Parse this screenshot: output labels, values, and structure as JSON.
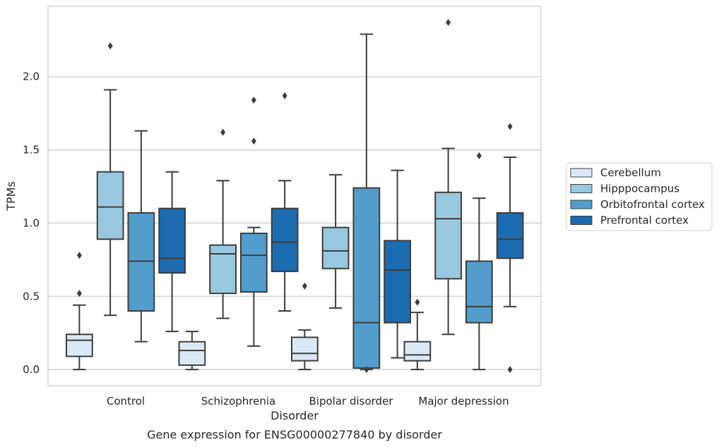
{
  "chart_data": {
    "type": "box",
    "xlabel": "Disorder",
    "ylabel": "TPMs",
    "caption": "Gene expression for ENSG00000277840 by disorder",
    "ylim": [
      -0.11,
      2.48
    ],
    "yticks": [
      0.0,
      0.5,
      1.0,
      1.5,
      2.0
    ],
    "ytick_labels": [
      "0.0",
      "0.5",
      "1.0",
      "1.5",
      "2.0"
    ],
    "grid": "horizontal",
    "legend_position": "right",
    "categories": [
      "Control",
      "Schizophrenia",
      "Bipolar disorder",
      "Major depression"
    ],
    "series": [
      {
        "name": "Cerebellum",
        "color": "#dbe9f6",
        "boxes": [
          {
            "whisker_low": 0.0,
            "q1": 0.09,
            "median": 0.2,
            "q3": 0.24,
            "whisker_high": 0.44,
            "outliers": [
              0.52,
              0.78
            ]
          },
          {
            "whisker_low": 0.0,
            "q1": 0.03,
            "median": 0.13,
            "q3": 0.19,
            "whisker_high": 0.26,
            "outliers": []
          },
          {
            "whisker_low": 0.0,
            "q1": 0.06,
            "median": 0.11,
            "q3": 0.22,
            "whisker_high": 0.27,
            "outliers": [
              0.57
            ]
          },
          {
            "whisker_low": 0.0,
            "q1": 0.06,
            "median": 0.1,
            "q3": 0.19,
            "whisker_high": 0.39,
            "outliers": [
              0.46
            ]
          }
        ]
      },
      {
        "name": "Hipppocampus",
        "color": "#9ac8e0",
        "boxes": [
          {
            "whisker_low": 0.37,
            "q1": 0.89,
            "median": 1.11,
            "q3": 1.35,
            "whisker_high": 1.91,
            "outliers": [
              2.21
            ]
          },
          {
            "whisker_low": 0.35,
            "q1": 0.52,
            "median": 0.79,
            "q3": 0.85,
            "whisker_high": 1.29,
            "outliers": [
              1.62
            ]
          },
          {
            "whisker_low": 0.42,
            "q1": 0.69,
            "median": 0.81,
            "q3": 0.97,
            "whisker_high": 1.33,
            "outliers": []
          },
          {
            "whisker_low": 0.24,
            "q1": 0.62,
            "median": 1.03,
            "q3": 1.21,
            "whisker_high": 1.51,
            "outliers": [
              2.37
            ]
          }
        ]
      },
      {
        "name": "Orbitofrontal cortex",
        "color": "#529dcc",
        "boxes": [
          {
            "whisker_low": 0.19,
            "q1": 0.4,
            "median": 0.74,
            "q3": 1.07,
            "whisker_high": 1.63,
            "outliers": []
          },
          {
            "whisker_low": 0.16,
            "q1": 0.53,
            "median": 0.78,
            "q3": 0.93,
            "whisker_high": 0.97,
            "outliers": [
              1.56,
              1.84
            ]
          },
          {
            "whisker_low": 0.0,
            "q1": 0.01,
            "median": 0.32,
            "q3": 1.24,
            "whisker_high": 2.29,
            "outliers": [
              0.0
            ]
          },
          {
            "whisker_low": 0.0,
            "q1": 0.32,
            "median": 0.43,
            "q3": 0.74,
            "whisker_high": 1.17,
            "outliers": [
              1.46
            ]
          }
        ]
      },
      {
        "name": "Prefrontal cortex",
        "color": "#1c6aaf",
        "boxes": [
          {
            "whisker_low": 0.26,
            "q1": 0.66,
            "median": 0.76,
            "q3": 1.1,
            "whisker_high": 1.35,
            "outliers": []
          },
          {
            "whisker_low": 0.4,
            "q1": 0.67,
            "median": 0.87,
            "q3": 1.1,
            "whisker_high": 1.29,
            "outliers": [
              1.87
            ]
          },
          {
            "whisker_low": 0.08,
            "q1": 0.32,
            "median": 0.68,
            "q3": 0.88,
            "whisker_high": 1.36,
            "outliers": []
          },
          {
            "whisker_low": 0.43,
            "q1": 0.76,
            "median": 0.89,
            "q3": 1.07,
            "whisker_high": 1.45,
            "outliers": [
              0.0,
              1.66
            ]
          }
        ]
      }
    ]
  }
}
